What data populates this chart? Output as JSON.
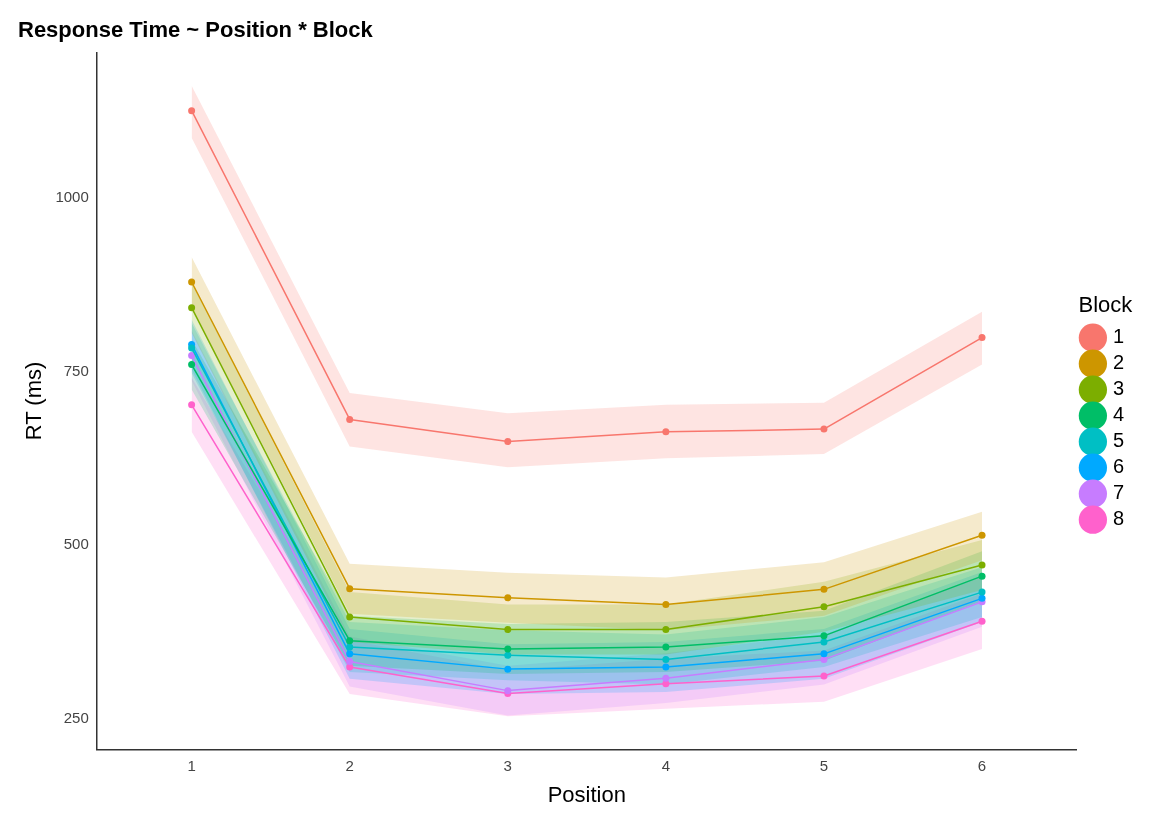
{
  "chart_data": {
    "type": "line",
    "title": "Response Time ~ Position * Block",
    "xlabel": "Position",
    "ylabel": "RT (ms)",
    "legend_title": "Block",
    "x": [
      1,
      2,
      3,
      4,
      5,
      6
    ],
    "xlim": [
      0.4,
      6.6
    ],
    "xticks": [
      1,
      2,
      3,
      4,
      5,
      6
    ],
    "ylim": [
      205,
      1210
    ],
    "yticks": [
      250,
      500,
      750,
      1000
    ],
    "grid": false,
    "legend": "right",
    "marker": "circle",
    "line_style": "solid",
    "series": [
      {
        "name": "1",
        "color": "#f8766d",
        "values": [
          1126,
          681,
          649,
          663,
          667,
          799
        ],
        "lower": [
          1087,
          642,
          612,
          625,
          631,
          760
        ],
        "upper": [
          1162,
          719,
          690,
          702,
          705,
          836
        ]
      },
      {
        "name": "2",
        "color": "#cd9600",
        "values": [
          879,
          437,
          424,
          414,
          436,
          514
        ],
        "lower": [
          843,
          401,
          388,
          377,
          398,
          478
        ],
        "upper": [
          915,
          473,
          460,
          453,
          475,
          548
        ]
      },
      {
        "name": "3",
        "color": "#7cae00",
        "values": [
          842,
          396,
          378,
          378,
          411,
          471
        ],
        "lower": [
          806,
          360,
          342,
          342,
          375,
          435
        ],
        "upper": [
          878,
          432,
          414,
          414,
          447,
          507
        ]
      },
      {
        "name": "4",
        "color": "#00be67",
        "values": [
          760,
          362,
          350,
          353,
          369,
          455
        ],
        "lower": [
          724,
          326,
          314,
          317,
          333,
          419
        ],
        "upper": [
          796,
          398,
          386,
          389,
          405,
          491
        ]
      },
      {
        "name": "5",
        "color": "#00bfc4",
        "values": [
          784,
          353,
          341,
          335,
          360,
          432
        ],
        "lower": [
          748,
          317,
          305,
          299,
          324,
          396
        ],
        "upper": [
          820,
          389,
          377,
          371,
          396,
          468
        ]
      },
      {
        "name": "6",
        "color": "#00a9ff",
        "values": [
          789,
          343,
          321,
          324,
          343,
          423
        ],
        "lower": [
          753,
          307,
          285,
          288,
          307,
          389
        ],
        "upper": [
          825,
          379,
          357,
          360,
          379,
          461
        ]
      },
      {
        "name": "7",
        "color": "#c77cff",
        "values": [
          773,
          332,
          290,
          308,
          335,
          418
        ],
        "lower": [
          737,
          296,
          254,
          272,
          299,
          382
        ],
        "upper": [
          809,
          368,
          326,
          344,
          371,
          454
        ]
      },
      {
        "name": "8",
        "color": "#ff61cc",
        "values": [
          702,
          324,
          286,
          300,
          311,
          390
        ],
        "lower": [
          663,
          285,
          253,
          264,
          274,
          350
        ],
        "upper": [
          741,
          363,
          319,
          336,
          348,
          430
        ]
      }
    ]
  }
}
